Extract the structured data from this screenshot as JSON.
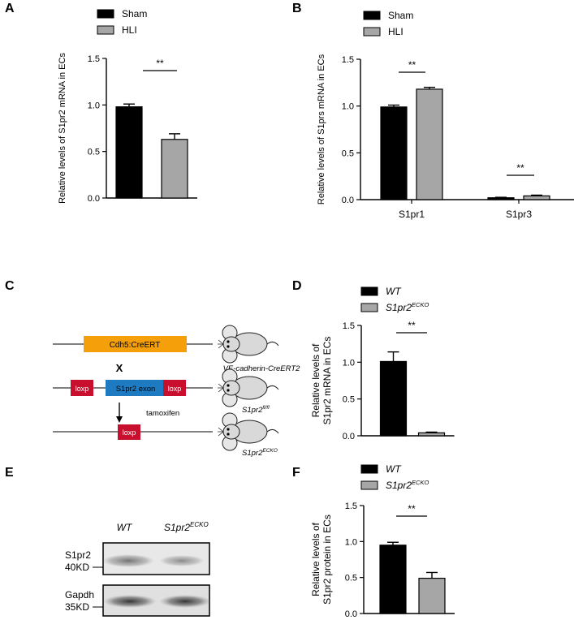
{
  "panels": {
    "a": "A",
    "b": "B",
    "c": "C",
    "d": "D",
    "e": "E",
    "f": "F"
  },
  "colors": {
    "black": "#000000",
    "gray": "#a6a6a6",
    "orange": "#f5a00a",
    "blue": "#1e7bc2",
    "red": "#c8102e",
    "mouse": "#d9d9d9"
  },
  "chart_data": [
    {
      "id": "A",
      "type": "bar",
      "ylabel": "Relative levels of S1pr2 mRNA in ECs",
      "ylim": [
        0,
        1.5
      ],
      "yticks": [
        "0.0",
        "0.5",
        "1.0",
        "1.5"
      ],
      "categories": [
        ""
      ],
      "series": [
        {
          "name": "Sham",
          "values": [
            0.98
          ],
          "err": [
            0.03
          ]
        },
        {
          "name": "HLI",
          "values": [
            0.63
          ],
          "err": [
            0.06
          ]
        }
      ],
      "legend": [
        "Sham",
        "HLI"
      ],
      "significance": [
        {
          "label": "**"
        }
      ]
    },
    {
      "id": "B",
      "type": "bar",
      "ylabel": "Relative levels of S1prs mRNA in ECs",
      "ylim": [
        0,
        1.5
      ],
      "yticks": [
        "0.0",
        "0.5",
        "1.0",
        "1.5"
      ],
      "categories": [
        "S1pr1",
        "S1pr3"
      ],
      "series": [
        {
          "name": "Sham",
          "values": [
            0.99,
            0.02
          ],
          "err": [
            0.02,
            0.005
          ]
        },
        {
          "name": "HLI",
          "values": [
            1.18,
            0.04
          ],
          "err": [
            0.02,
            0.008
          ]
        }
      ],
      "legend": [
        "Sham",
        "HLI"
      ],
      "significance": [
        {
          "label": "**"
        },
        {
          "label": "**"
        }
      ]
    },
    {
      "id": "D",
      "type": "bar",
      "ylabel": [
        "Relative levels of",
        "S1pr2 mRNA in ECs"
      ],
      "ylim": [
        0,
        1.5
      ],
      "yticks": [
        "0.0",
        "0.5",
        "1.0",
        "1.5"
      ],
      "categories": [
        ""
      ],
      "series": [
        {
          "name": "WT",
          "values": [
            1.01
          ],
          "err": [
            0.13
          ]
        },
        {
          "name": "S1pr2 ECKO",
          "values": [
            0.04
          ],
          "err": [
            0.01
          ]
        }
      ],
      "legend": [
        {
          "main": "WT",
          "sup": ""
        },
        {
          "main": "S1pr2",
          "sup": "ECKO"
        }
      ],
      "significance": [
        {
          "label": "**"
        }
      ]
    },
    {
      "id": "F",
      "type": "bar",
      "ylabel": [
        "Relative levels of",
        "S1pr2 protein in ECs"
      ],
      "ylim": [
        0,
        1.5
      ],
      "yticks": [
        "0.0",
        "0.5",
        "1.0",
        "1.5"
      ],
      "categories": [
        ""
      ],
      "series": [
        {
          "name": "WT",
          "values": [
            0.95
          ],
          "err": [
            0.04
          ]
        },
        {
          "name": "S1pr2 ECKO",
          "values": [
            0.49
          ],
          "err": [
            0.08
          ]
        }
      ],
      "legend": [
        {
          "main": "WT",
          "sup": ""
        },
        {
          "main": "S1pr2",
          "sup": "ECKO"
        }
      ],
      "significance": [
        {
          "label": "**"
        }
      ]
    }
  ],
  "diagram": {
    "cdh5_label": "Cdh5:CreERT",
    "cross": "X",
    "loxp": "loxp",
    "exon_label": "S1pr2 exon",
    "tamoxifen": "tamoxifen",
    "mouse1_label": "VE-cadherin-CreERT2",
    "mouse2_label": {
      "main": "S1pr2",
      "sup": "fl/fl"
    },
    "mouse3_label": {
      "main": "S1pr2",
      "sup": "ECKO"
    }
  },
  "blot": {
    "col_wt": "WT",
    "col_ko": {
      "main": "S1pr2",
      "sup": "ECKO"
    },
    "row1_name": "S1pr2",
    "row1_kd": "40KD",
    "row2_name": "Gapdh",
    "row2_kd": "35KD"
  }
}
